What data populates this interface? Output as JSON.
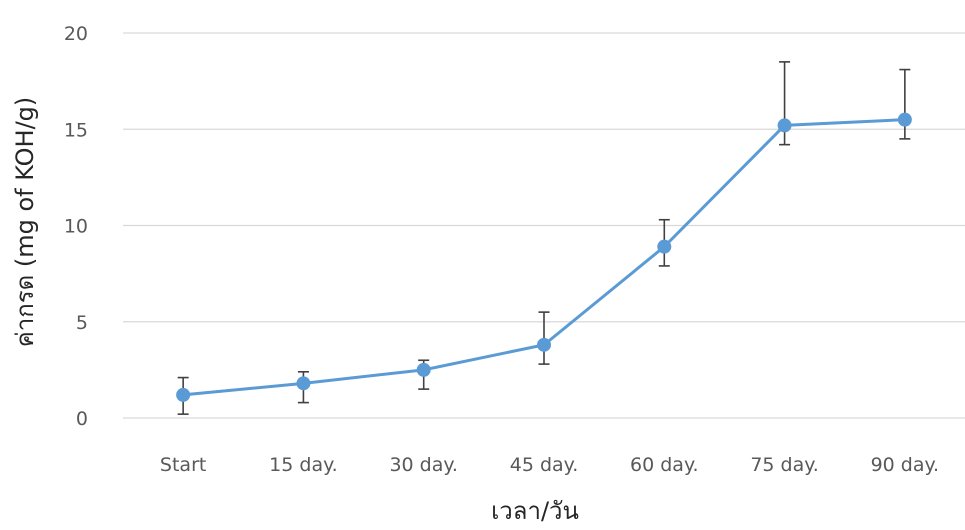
{
  "chart_data": {
    "type": "line",
    "title": "",
    "xlabel": "เวลา/วัน",
    "ylabel": "ค่ากรด (mg of KOH/g)",
    "categories": [
      "Start",
      "15 day.",
      "30 day.",
      "45 day.",
      "60 day.",
      "75 day.",
      "90 day."
    ],
    "series": [
      {
        "values": [
          1.2,
          1.8,
          2.5,
          3.8,
          8.9,
          15.2,
          15.5
        ],
        "error_upper": [
          0.9,
          0.6,
          0.5,
          1.7,
          1.4,
          3.3,
          2.6
        ],
        "error_lower": [
          1.0,
          1.0,
          1.0,
          1.0,
          1.0,
          1.0,
          1.0
        ]
      }
    ],
    "ylim": [
      0,
      20
    ],
    "yticks": [
      0,
      5,
      10,
      15,
      20
    ],
    "grid": true,
    "colors": {
      "line": "#5B9BD5",
      "marker": "#5B9BD5",
      "error_bar": "#404040",
      "grid": "#d9d9d9"
    }
  }
}
